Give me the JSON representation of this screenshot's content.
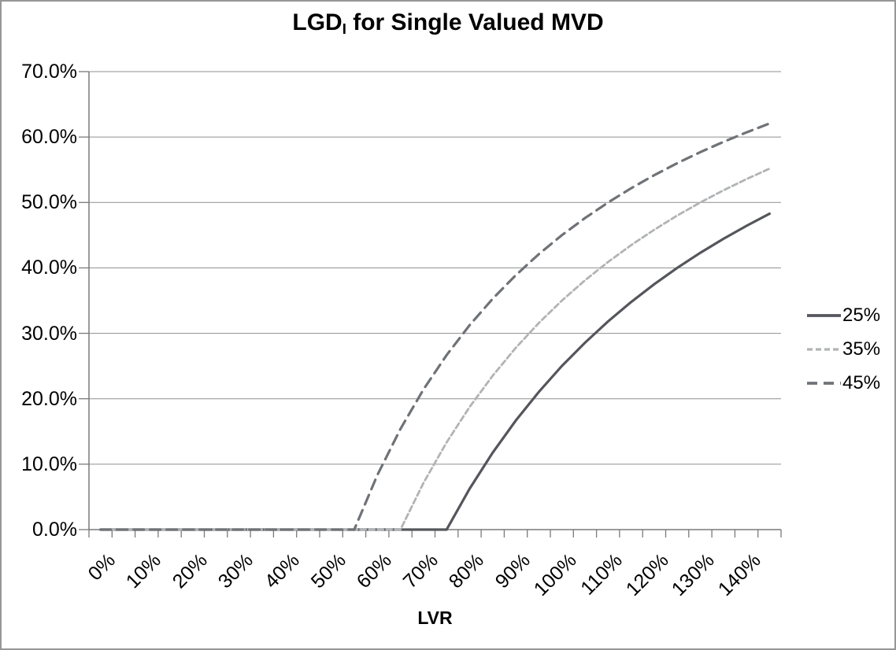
{
  "window": {
    "background": "#FFFFFF",
    "border_color": "#969696"
  },
  "chart_data": {
    "type": "line",
    "title": "LGDI for Single Valued MVD",
    "title_parts": {
      "prefix": "LGD",
      "subscript": "I",
      "suffix": " for Single Valued MVD"
    },
    "xlabel": "LVR",
    "ylim_pct": [
      0,
      70
    ],
    "grid": "horizontal",
    "legend_position": "right",
    "colors": {
      "gridline": "#8F8F8F",
      "axis": "#7A7A7A",
      "tick": "#7A7A7A",
      "text": "#000000"
    },
    "x_categories_pct": [
      0,
      5,
      10,
      15,
      20,
      25,
      30,
      35,
      40,
      45,
      50,
      55,
      60,
      65,
      70,
      75,
      80,
      85,
      90,
      95,
      100,
      105,
      110,
      115,
      120,
      125,
      130,
      135,
      140,
      145
    ],
    "x_tick_labels": [
      "0%",
      "10%",
      "20%",
      "30%",
      "40%",
      "50%",
      "60%",
      "70%",
      "80%",
      "90%",
      "100%",
      "110%",
      "120%",
      "130%",
      "140%"
    ],
    "y_ticks": [
      {
        "label": "0.0%",
        "value": 0
      },
      {
        "label": "10.0%",
        "value": 10
      },
      {
        "label": "20.0%",
        "value": 20
      },
      {
        "label": "30.0%",
        "value": 30
      },
      {
        "label": "40.0%",
        "value": 40
      },
      {
        "label": "50.0%",
        "value": 50
      },
      {
        "label": "60.0%",
        "value": 60
      },
      {
        "label": "70.0%",
        "value": 70
      }
    ],
    "series": [
      {
        "name": "25%",
        "color": "#54565B",
        "dash": "",
        "width": 3.2,
        "values": [
          0,
          0,
          0,
          0,
          0,
          0,
          0,
          0,
          0,
          0,
          0,
          0,
          0,
          0,
          0,
          0,
          6.25,
          11.76,
          16.67,
          21.05,
          25,
          28.57,
          31.82,
          34.78,
          37.5,
          40,
          42.31,
          44.44,
          46.43,
          48.28
        ]
      },
      {
        "name": "35%",
        "color": "#B1B3B5",
        "dash": "7 4",
        "width": 2.8,
        "values": [
          0,
          0,
          0,
          0,
          0,
          0,
          0,
          0,
          0,
          0,
          0,
          0,
          0,
          0,
          7.14,
          13.33,
          18.75,
          23.53,
          27.78,
          31.58,
          35,
          38.1,
          40.91,
          43.48,
          45.83,
          48,
          50,
          51.85,
          53.57,
          55.17
        ]
      },
      {
        "name": "45%",
        "color": "#6F7276",
        "dash": "13 8",
        "width": 3.2,
        "values": [
          0,
          0,
          0,
          0,
          0,
          0,
          0,
          0,
          0,
          0,
          0,
          0,
          8.33,
          15.38,
          21.43,
          26.67,
          31.25,
          35.29,
          38.89,
          42.11,
          45,
          47.62,
          50,
          52.17,
          54.17,
          56,
          57.69,
          59.26,
          60.71,
          62.07
        ]
      }
    ]
  }
}
